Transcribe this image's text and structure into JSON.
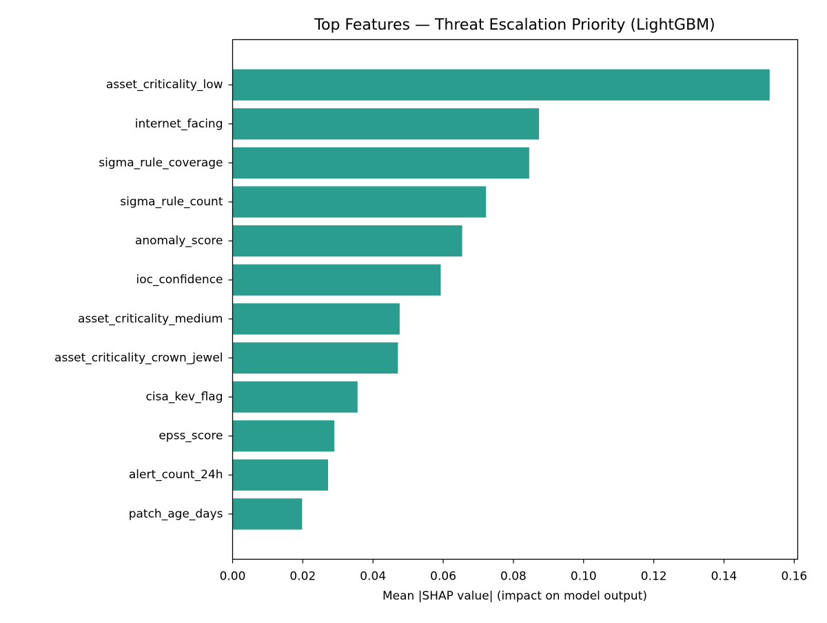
{
  "chart_data": {
    "type": "bar",
    "orientation": "horizontal",
    "title": "Top Features — Threat Escalation Priority (LightGBM)",
    "xlabel": "Mean |SHAP value| (impact on model output)",
    "ylabel": "",
    "xlim": [
      0,
      0.161
    ],
    "x_ticks": [
      0.0,
      0.02,
      0.04,
      0.06,
      0.08,
      0.1,
      0.12,
      0.14,
      0.16
    ],
    "x_tick_labels": [
      "0.00",
      "0.02",
      "0.04",
      "0.06",
      "0.08",
      "0.10",
      "0.12",
      "0.14",
      "0.16"
    ],
    "grid": false,
    "bar_color": "#2a9d8f",
    "categories": [
      "asset_criticality_low",
      "internet_facing",
      "sigma_rule_coverage",
      "sigma_rule_count",
      "anomaly_score",
      "ioc_confidence",
      "asset_criticality_medium",
      "asset_criticality_crown_jewel",
      "cisa_kev_flag",
      "epss_score",
      "alert_count_24h",
      "patch_age_days"
    ],
    "values": [
      0.153,
      0.0873,
      0.0845,
      0.0722,
      0.0654,
      0.0593,
      0.0476,
      0.0471,
      0.0356,
      0.029,
      0.0272,
      0.0198
    ]
  }
}
